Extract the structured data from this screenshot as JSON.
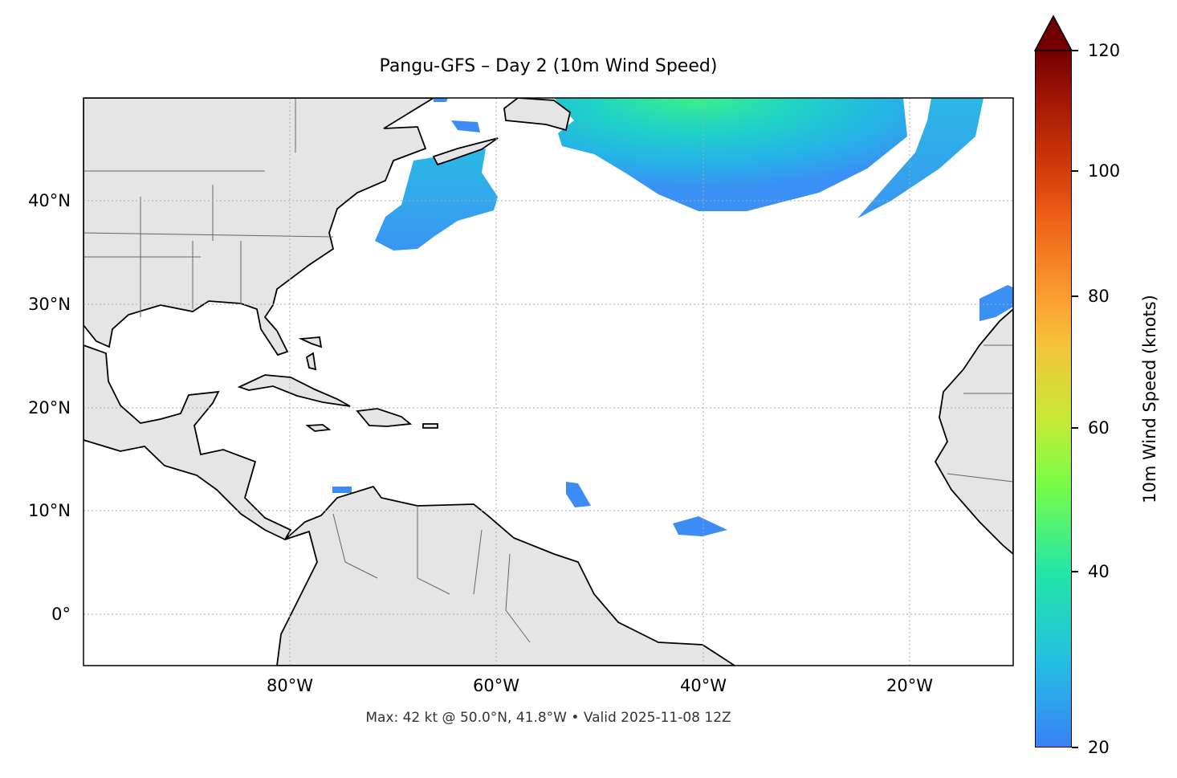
{
  "title": "Pangu-GFS – Day 2 (10m Wind Speed)",
  "map": {
    "projection": "PlateCarree",
    "extent_lon": [
      -100,
      -10
    ],
    "extent_lat": [
      -5,
      50
    ],
    "gridlines": true,
    "x_ticks": [
      "80°W",
      "60°W",
      "40°W",
      "20°W"
    ],
    "y_ticks": [
      "40°N",
      "30°N",
      "20°N",
      "10°N",
      "0°"
    ],
    "land_color": "#e5e5e5",
    "coast_color": "#000000",
    "border_color": "#666666"
  },
  "colorbar": {
    "label": "10m Wind Speed (knots)",
    "ticks": [
      "20",
      "40",
      "60",
      "80",
      "100",
      "120"
    ],
    "range": [
      20,
      120
    ],
    "extend": "max",
    "colormap": "turbo"
  },
  "footer": "Max: 42 kt @ 50.0°N, 41.8°W • Valid 2025-11-08 12Z"
}
